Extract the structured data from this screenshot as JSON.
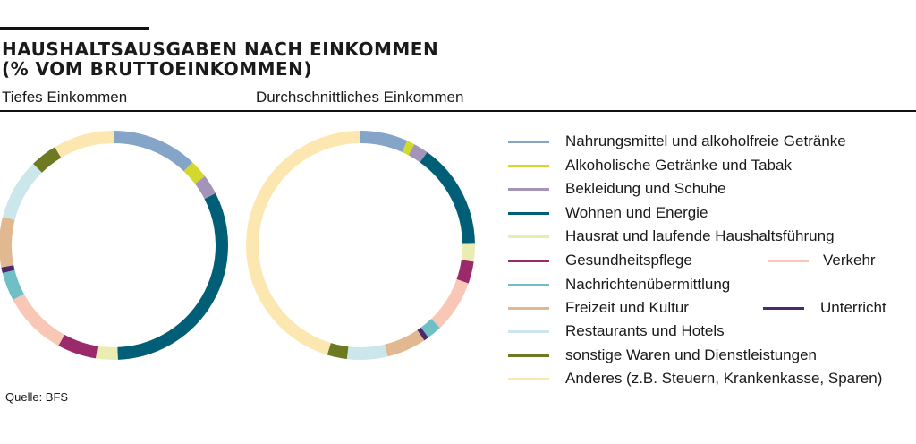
{
  "title_line1": "HAUSHALTSAUSGABEN NACH EINKOMMEN",
  "title_line2": "(% VOM BRUTTOEINKOMMEN)",
  "source": "Quelle: BFS",
  "chart_data": {
    "type": "pie",
    "categories": [
      "Nahrungsmittel und alkoholfreie Getränke",
      "Alkoholische Getränke und Tabak",
      "Bekleidung und Schuhe",
      "Wohnen und Energie",
      "Hausrat und laufende Haushaltsführung",
      "Gesundheitspflege",
      "Verkehr",
      "Nachrichtenübermittlung",
      "Unterricht",
      "Freizeit und Kultur",
      "Restaurants und Hotels",
      "sonstige Waren und Dienstleistungen",
      "Anderes (z.B. Steuern, Krankenkasse, Sparen)"
    ],
    "colors": [
      "#85a5c8",
      "#d2d82c",
      "#a495b8",
      "#005f76",
      "#e9edb2",
      "#9a2a6a",
      "#f8c7b6",
      "#6fc0c6",
      "#4a2a6a",
      "#e2b890",
      "#cce7ec",
      "#6d7a22",
      "#fde7b1"
    ],
    "series": [
      {
        "name": "Tiefes Einkommen",
        "values": [
          12.1,
          2.6,
          2.8,
          31.9,
          3.1,
          5.5,
          9.1,
          4.0,
          0.8,
          7.1,
          8.6,
          3.8,
          8.6
        ]
      },
      {
        "name": "Durchschnittliches Einkommen",
        "values": [
          6.7,
          1.1,
          2.1,
          14.9,
          2.5,
          3.1,
          7.4,
          2.1,
          0.7,
          5.6,
          5.7,
          2.8,
          45.3
        ]
      }
    ]
  }
}
